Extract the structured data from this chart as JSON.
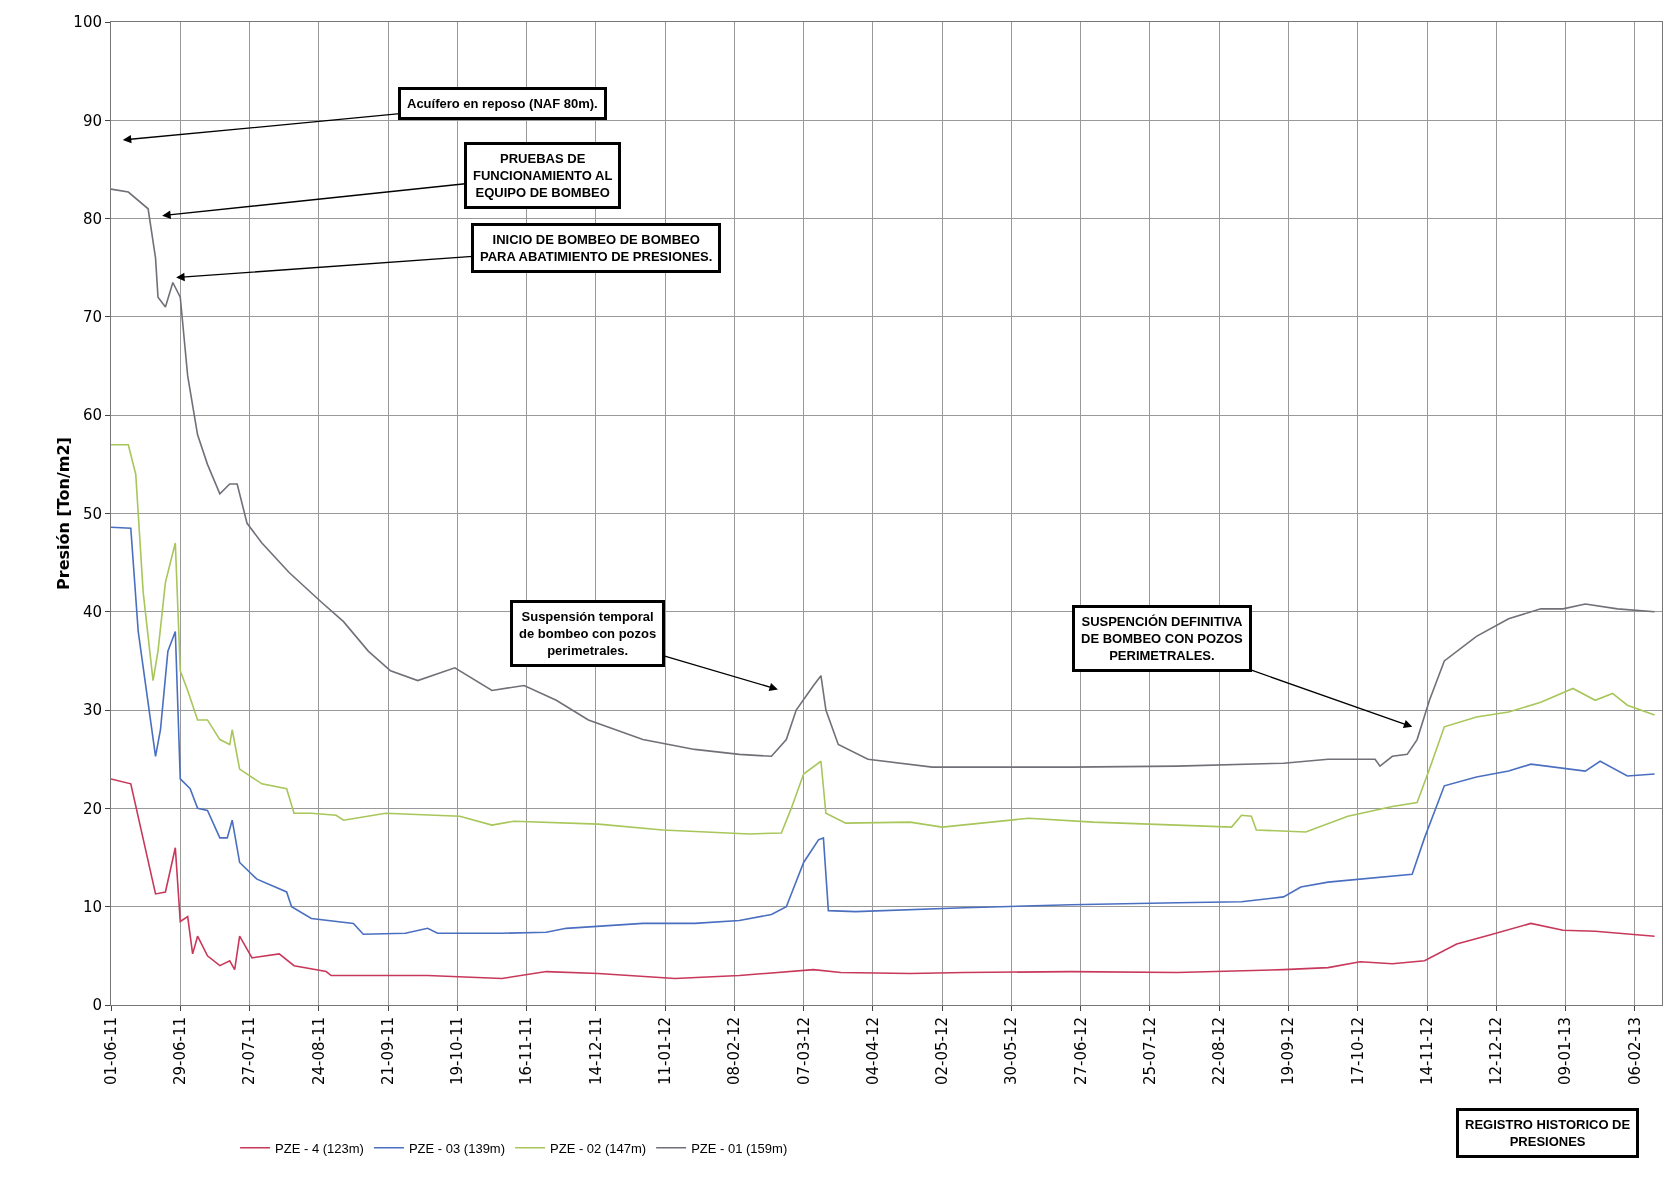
{
  "chart_data": {
    "type": "line",
    "ylabel": "Presión [Ton/m2]",
    "xlim": [
      "2011-06-01",
      "2013-02-17"
    ],
    "ylim": [
      0,
      100
    ],
    "yticks": [
      0,
      10,
      20,
      30,
      40,
      50,
      60,
      70,
      80,
      90,
      100
    ],
    "xticks": [
      {
        "value": "2011-06-01",
        "label": "01-06-11"
      },
      {
        "value": "2011-06-29",
        "label": "29-06-11"
      },
      {
        "value": "2011-07-27",
        "label": "27-07-11"
      },
      {
        "value": "2011-08-24",
        "label": "24-08-11"
      },
      {
        "value": "2011-09-21",
        "label": "21-09-11"
      },
      {
        "value": "2011-10-19",
        "label": "19-10-11"
      },
      {
        "value": "2011-11-16",
        "label": "16-11-11"
      },
      {
        "value": "2011-12-14",
        "label": "14-12-11"
      },
      {
        "value": "2012-01-11",
        "label": "11-01-12"
      },
      {
        "value": "2012-02-08",
        "label": "08-02-12"
      },
      {
        "value": "2012-03-07",
        "label": "07-03-12"
      },
      {
        "value": "2012-04-04",
        "label": "04-04-12"
      },
      {
        "value": "2012-05-02",
        "label": "02-05-12"
      },
      {
        "value": "2012-05-30",
        "label": "30-05-12"
      },
      {
        "value": "2012-06-27",
        "label": "27-06-12"
      },
      {
        "value": "2012-07-25",
        "label": "25-07-12"
      },
      {
        "value": "2012-08-22",
        "label": "22-08-12"
      },
      {
        "value": "2012-09-19",
        "label": "19-09-12"
      },
      {
        "value": "2012-10-17",
        "label": "17-10-12"
      },
      {
        "value": "2012-11-14",
        "label": "14-11-12"
      },
      {
        "value": "2012-12-12",
        "label": "12-12-12"
      },
      {
        "value": "2013-01-09",
        "label": "09-01-13"
      },
      {
        "value": "2013-02-06",
        "label": "06-02-13"
      }
    ],
    "grid": true,
    "legend": "bottom",
    "series": [
      {
        "name": "PZE - 4 (123m)",
        "color": "#c8385a",
        "x": [
          "2011-06-01",
          "2011-06-09",
          "2011-06-19",
          "2011-06-23",
          "2011-06-27",
          "2011-06-29",
          "2011-07-02",
          "2011-07-04",
          "2011-07-06",
          "2011-07-10",
          "2011-07-15",
          "2011-07-19",
          "2011-07-21",
          "2011-07-23",
          "2011-07-28",
          "2011-08-08",
          "2011-08-14",
          "2011-08-27",
          "2011-08-29",
          "2011-09-11",
          "2011-10-07",
          "2011-11-06",
          "2011-11-24",
          "2011-12-15",
          "2012-01-15",
          "2012-02-10",
          "2012-03-11",
          "2012-03-22",
          "2012-04-19",
          "2012-05-11",
          "2012-06-23",
          "2012-08-05",
          "2012-09-17",
          "2012-10-05",
          "2012-10-18",
          "2012-10-31",
          "2012-11-13",
          "2012-11-26",
          "2012-12-09",
          "2012-12-26",
          "2013-01-08",
          "2013-01-21",
          "2013-02-14"
        ],
        "values": [
          23,
          22.5,
          11.3,
          11.5,
          16,
          8.5,
          9,
          5.2,
          7,
          5,
          4,
          4.5,
          3.6,
          7,
          4.8,
          5.2,
          4,
          3.4,
          3,
          3,
          3,
          2.7,
          3.4,
          3.2,
          2.7,
          3,
          3.6,
          3.3,
          3.2,
          3.3,
          3.4,
          3.3,
          3.6,
          3.8,
          4.4,
          4.2,
          4.5,
          6.2,
          7.1,
          8.3,
          7.6,
          7.5,
          7
        ]
      },
      {
        "name": "PZE - 03 (139m)",
        "color": "#4a6fc0",
        "x": [
          "2011-06-01",
          "2011-06-09",
          "2011-06-12",
          "2011-06-19",
          "2011-06-21",
          "2011-06-24",
          "2011-06-27",
          "2011-06-29",
          "2011-07-03",
          "2011-07-06",
          "2011-07-10",
          "2011-07-15",
          "2011-07-18",
          "2011-07-20",
          "2011-07-23",
          "2011-07-30",
          "2011-08-11",
          "2011-08-13",
          "2011-08-21",
          "2011-09-07",
          "2011-09-11",
          "2011-09-28",
          "2011-10-07",
          "2011-10-11",
          "2011-11-06",
          "2011-11-24",
          "2011-12-02",
          "2012-01-02",
          "2012-01-23",
          "2012-02-10",
          "2012-02-23",
          "2012-02-29",
          "2012-03-07",
          "2012-03-13",
          "2012-03-15",
          "2012-03-17",
          "2012-03-28",
          "2012-05-11",
          "2012-06-23",
          "2012-08-05",
          "2012-08-31",
          "2012-09-17",
          "2012-09-24",
          "2012-10-05",
          "2012-11-08",
          "2012-11-13",
          "2012-11-21",
          "2012-12-04",
          "2012-12-17",
          "2012-12-26",
          "2013-01-17",
          "2013-01-23",
          "2013-02-03",
          "2013-02-14"
        ],
        "values": [
          48.6,
          48.5,
          38,
          25.3,
          28,
          36,
          38,
          23,
          22,
          20,
          19.8,
          17,
          17,
          18.8,
          14.5,
          12.8,
          11.5,
          10,
          8.8,
          8.3,
          7.2,
          7.3,
          7.8,
          7.3,
          7.3,
          7.4,
          7.8,
          8.3,
          8.3,
          8.6,
          9.2,
          10,
          14.5,
          16.8,
          17,
          9.6,
          9.5,
          9.9,
          10.2,
          10.4,
          10.5,
          11,
          12,
          12.5,
          13.3,
          17,
          22.3,
          23.2,
          23.8,
          24.5,
          23.8,
          24.8,
          23.3,
          23.5
        ]
      },
      {
        "name": "PZE - 02 (147m)",
        "color": "#a8c65a",
        "x": [
          "2011-06-01",
          "2011-06-08",
          "2011-06-11",
          "2011-06-14",
          "2011-06-18",
          "2011-06-20",
          "2011-06-23",
          "2011-06-27",
          "2011-06-29",
          "2011-07-02",
          "2011-07-06",
          "2011-07-10",
          "2011-07-15",
          "2011-07-19",
          "2011-07-20",
          "2011-07-23",
          "2011-08-01",
          "2011-08-11",
          "2011-08-14",
          "2011-08-21",
          "2011-08-31",
          "2011-09-03",
          "2011-09-20",
          "2011-10-20",
          "2011-11-02",
          "2011-11-11",
          "2011-12-15",
          "2012-01-10",
          "2012-02-14",
          "2012-02-27",
          "2012-03-02",
          "2012-03-07",
          "2012-03-14",
          "2012-03-16",
          "2012-03-24",
          "2012-04-19",
          "2012-05-02",
          "2012-06-06",
          "2012-07-02",
          "2012-08-05",
          "2012-08-27",
          "2012-08-31",
          "2012-09-04",
          "2012-09-06",
          "2012-09-26",
          "2012-10-13",
          "2012-10-31",
          "2012-11-10",
          "2012-11-15",
          "2012-11-21",
          "2012-12-04",
          "2012-12-17",
          "2012-12-30",
          "2013-01-12",
          "2013-01-21",
          "2013-01-28",
          "2013-02-03",
          "2013-02-14"
        ],
        "values": [
          57,
          57,
          54,
          42,
          33,
          36,
          43,
          47,
          34,
          32,
          29,
          29,
          27,
          26.5,
          28,
          24,
          22.5,
          22,
          19.5,
          19.5,
          19.3,
          18.8,
          19.5,
          19.2,
          18.3,
          18.7,
          18.4,
          17.8,
          17.4,
          17.5,
          20,
          23.5,
          24.8,
          19.5,
          18.5,
          18.6,
          18.1,
          19,
          18.6,
          18.3,
          18.1,
          19.3,
          19.2,
          17.8,
          17.6,
          19.2,
          20.2,
          20.6,
          24,
          28.3,
          29.3,
          29.8,
          30.8,
          32.2,
          31,
          31.7,
          30.5,
          29.5
        ]
      },
      {
        "name": "PZE - 01 (159m)",
        "color": "#707078",
        "x": [
          "2011-06-01",
          "2011-06-08",
          "2011-06-16",
          "2011-06-19",
          "2011-06-20",
          "2011-06-23",
          "2011-06-26",
          "2011-06-29",
          "2011-07-02",
          "2011-07-06",
          "2011-07-10",
          "2011-07-15",
          "2011-07-19",
          "2011-07-22",
          "2011-07-26",
          "2011-08-01",
          "2011-08-12",
          "2011-08-25",
          "2011-09-03",
          "2011-09-13",
          "2011-09-22",
          "2011-10-03",
          "2011-10-18",
          "2011-11-02",
          "2011-11-15",
          "2011-11-28",
          "2011-12-11",
          "2012-01-02",
          "2012-01-23",
          "2012-02-10",
          "2012-02-23",
          "2012-02-29",
          "2012-03-04",
          "2012-03-11",
          "2012-03-14",
          "2012-03-16",
          "2012-03-21",
          "2012-04-02",
          "2012-04-28",
          "2012-06-23",
          "2012-08-05",
          "2012-09-17",
          "2012-10-05",
          "2012-10-24",
          "2012-10-26",
          "2012-10-31",
          "2012-11-06",
          "2012-11-10",
          "2012-11-15",
          "2012-11-21",
          "2012-12-04",
          "2012-12-17",
          "2012-12-30",
          "2013-01-08",
          "2013-01-17",
          "2013-01-30",
          "2013-02-14"
        ],
        "values": [
          83,
          82.7,
          81,
          76,
          72,
          71,
          73.5,
          72,
          64,
          58,
          55,
          52,
          53,
          53,
          49,
          47,
          44,
          41,
          39,
          36,
          34,
          33,
          34.3,
          32,
          32.5,
          31,
          29,
          27,
          26,
          25.5,
          25.3,
          27,
          30,
          32.5,
          33.5,
          30,
          26.5,
          25,
          24.2,
          24.2,
          24.3,
          24.6,
          25,
          25,
          24.3,
          25.3,
          25.5,
          27,
          31,
          35,
          37.5,
          39.3,
          40.3,
          40.3,
          40.8,
          40.3,
          40
        ]
      }
    ],
    "annotations": [
      "Acuífero en reposo (NAF 80m).",
      "PRUEBAS DE\nFUNCIONAMIENTO AL\nEQUIPO DE BOMBEO",
      "INICIO DE BOMBEO DE BOMBEO\nPARA ABATIMIENTO DE PRESIONES.",
      "Suspensión temporal\nde bombeo con pozos\nperimetrales.",
      "SUSPENCIÓN DEFINITIVA\nDE BOMBEO CON POZOS\nPERIMETRALES.",
      "REGISTRO HISTORICO DE\nPRESIONES"
    ]
  }
}
